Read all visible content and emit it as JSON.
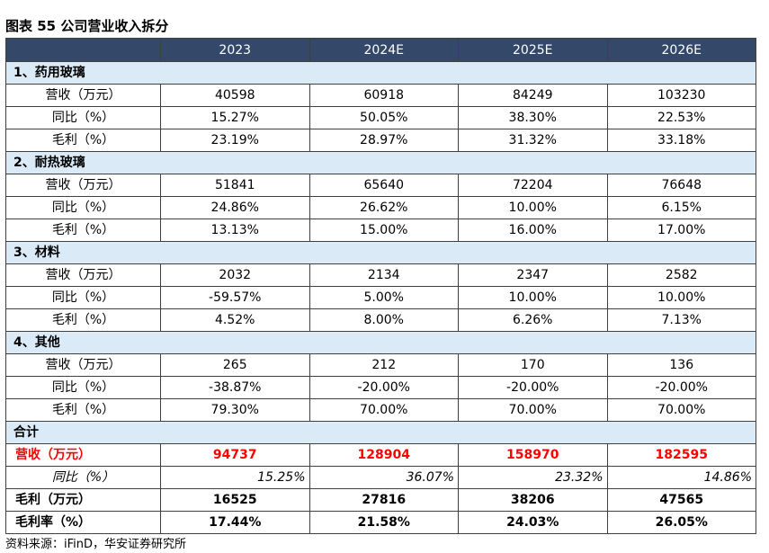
{
  "title": "图表 55 公司营业收入拆分",
  "header": {
    "years": [
      "2023",
      "2024E",
      "2025E",
      "2026E"
    ]
  },
  "sections": [
    {
      "name": "1、药用玻璃",
      "rows": [
        {
          "label": "营收（万元）",
          "values": [
            "40598",
            "60918",
            "84249",
            "103230"
          ]
        },
        {
          "label": "同比（%）",
          "values": [
            "15.27%",
            "50.05%",
            "38.30%",
            "22.53%"
          ]
        },
        {
          "label": "毛利（%）",
          "values": [
            "23.19%",
            "28.97%",
            "31.32%",
            "33.18%"
          ]
        }
      ]
    },
    {
      "name": "2、耐热玻璃",
      "rows": [
        {
          "label": "营收（万元）",
          "values": [
            "51841",
            "65640",
            "72204",
            "76648"
          ]
        },
        {
          "label": "同比（%）",
          "values": [
            "24.86%",
            "26.62%",
            "10.00%",
            "6.15%"
          ]
        },
        {
          "label": "毛利（%）",
          "values": [
            "13.13%",
            "15.00%",
            "16.00%",
            "17.00%"
          ]
        }
      ]
    },
    {
      "name": "3、材料",
      "rows": [
        {
          "label": "营收（万元）",
          "values": [
            "2032",
            "2134",
            "2347",
            "2582"
          ]
        },
        {
          "label": "同比（%）",
          "values": [
            "-59.57%",
            "5.00%",
            "10.00%",
            "10.00%"
          ]
        },
        {
          "label": "毛利（%）",
          "values": [
            "4.52%",
            "8.00%",
            "6.26%",
            "7.13%"
          ]
        }
      ]
    },
    {
      "name": "4、其他",
      "rows": [
        {
          "label": "营收（万元）",
          "values": [
            "265",
            "212",
            "170",
            "136"
          ]
        },
        {
          "label": "同比（%）",
          "values": [
            "-38.87%",
            "-20.00%",
            "-20.00%",
            "-20.00%"
          ]
        },
        {
          "label": "毛利（%）",
          "values": [
            "79.30%",
            "70.00%",
            "70.00%",
            "70.00%"
          ]
        }
      ]
    }
  ],
  "total": {
    "name": "合计",
    "revenue": {
      "label": "营收（万元）",
      "values": [
        "94737",
        "128904",
        "158970",
        "182595"
      ]
    },
    "yoy": {
      "label": "同比（%）",
      "values": [
        "15.25%",
        "36.07%",
        "23.32%",
        "14.86%"
      ]
    },
    "gross_profit": {
      "label": "毛利（万元）",
      "values": [
        "16525",
        "27816",
        "38206",
        "47565"
      ]
    },
    "gross_margin": {
      "label": "毛利率（%）",
      "values": [
        "17.44%",
        "21.58%",
        "24.03%",
        "26.05%"
      ]
    }
  },
  "source": "资料来源：iFinD，华安证券研究所",
  "colors": {
    "header_bg": "#34496a",
    "section_bg": "#daeaf7",
    "total_revenue": "#ff0000"
  }
}
